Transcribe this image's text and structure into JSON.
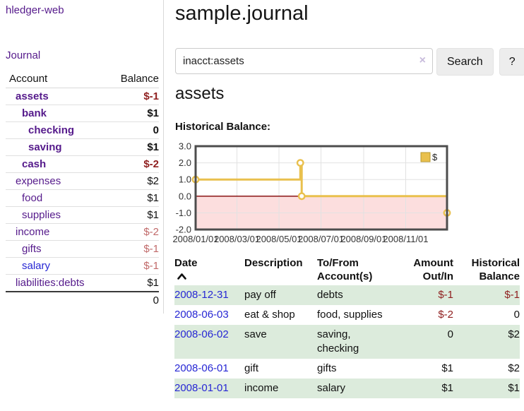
{
  "theme": {
    "purple": "#551a8b",
    "blue": "#2727d4",
    "strongNeg": "#8f1f1f",
    "softNeg": "#c16a6a",
    "stripe": "#dcebdc",
    "gold": "#e9c04d",
    "pink": "#fcdede",
    "zero": "#7f0000",
    "lavender": "#c8bcdc"
  },
  "app": {
    "brand": "hledger-web",
    "nav_journal": "Journal"
  },
  "sidebar": {
    "header": {
      "account": "Account",
      "balance": "Balance"
    },
    "accounts": [
      {
        "name": "assets",
        "balance": "$-1",
        "indent": 0,
        "bold": true,
        "balance_style": "neg-strong",
        "link": "purple"
      },
      {
        "name": "bank",
        "balance": "$1",
        "indent": 1,
        "bold": true,
        "balance_style": "normal",
        "link": "purple"
      },
      {
        "name": "checking",
        "balance": "0",
        "indent": 2,
        "bold": true,
        "balance_style": "normal",
        "link": "purple"
      },
      {
        "name": "saving",
        "balance": "$1",
        "indent": 2,
        "bold": true,
        "balance_style": "normal",
        "link": "purple"
      },
      {
        "name": "cash",
        "balance": "$-2",
        "indent": 1,
        "bold": true,
        "balance_style": "neg-strong",
        "link": "purple"
      },
      {
        "name": "expenses",
        "balance": "$2",
        "indent": 0,
        "bold": false,
        "balance_style": "normal",
        "link": "purple"
      },
      {
        "name": "food",
        "balance": "$1",
        "indent": 1,
        "bold": false,
        "balance_style": "normal",
        "link": "purple"
      },
      {
        "name": "supplies",
        "balance": "$1",
        "indent": 1,
        "bold": false,
        "balance_style": "normal",
        "link": "purple"
      },
      {
        "name": "income",
        "balance": "$-2",
        "indent": 0,
        "bold": false,
        "balance_style": "neg-soft",
        "link": "purple"
      },
      {
        "name": "gifts",
        "balance": "$-1",
        "indent": 1,
        "bold": false,
        "balance_style": "neg-soft",
        "link": "purple"
      },
      {
        "name": "salary",
        "balance": "$-1",
        "indent": 1,
        "bold": false,
        "balance_style": "neg-soft",
        "link": "blue"
      },
      {
        "name": "liabilities:debts",
        "balance": "$1",
        "indent": 0,
        "bold": false,
        "balance_style": "normal",
        "link": "purple"
      }
    ],
    "total": "0"
  },
  "header": {
    "title": "sample.journal"
  },
  "search": {
    "value": "inacct:assets",
    "clear_icon": "×",
    "button_label": "Search",
    "help_label": "?"
  },
  "account_page": {
    "title": "assets",
    "chart_label": "Historical Balance:"
  },
  "chart_data": {
    "type": "line",
    "step": true,
    "title": "Historical Balance",
    "legend": [
      {
        "label": "$",
        "color": "#e9c04d"
      }
    ],
    "x_ticks": [
      {
        "day": 0,
        "label": "2008/01/01"
      },
      {
        "day": 60,
        "label": "2008/03/01"
      },
      {
        "day": 121,
        "label": "2008/05/01"
      },
      {
        "day": 182,
        "label": "2008/07/01"
      },
      {
        "day": 244,
        "label": "2008/09/01"
      },
      {
        "day": 305,
        "label": "2008/11/01"
      }
    ],
    "y_ticks": [
      "3.0",
      "2.0",
      "1.0",
      "0.0",
      "-1.0",
      "-2.0"
    ],
    "ylim": [
      -2,
      3
    ],
    "xlim_days": [
      0,
      365
    ],
    "series": [
      {
        "name": "$",
        "points": [
          {
            "date": "2008/01/01",
            "day": 0,
            "value": 1
          },
          {
            "date": "2008/06/01",
            "day": 152,
            "value": 2
          },
          {
            "date": "2008/06/03",
            "day": 154,
            "value": 0
          },
          {
            "date": "2008/12/31",
            "day": 365,
            "value": -1
          }
        ]
      }
    ],
    "negative_region_fill": "#fcdede",
    "zero_line_color": "#7f0000",
    "line_color": "#e9c04d",
    "grid": true,
    "legend_position": "top-right"
  },
  "register": {
    "headers": {
      "date": "Date",
      "description": "Description",
      "tofrom_line1": "To/From",
      "tofrom_line2": "Account(s)",
      "amount_line1": "Amount",
      "amount_line2": "Out/In",
      "hist_line1": "Historical",
      "hist_line2": "Balance"
    },
    "rows": [
      {
        "date": "2008-12-31",
        "description": "pay off",
        "accounts": "debts",
        "amount": "$-1",
        "balance": "$-1",
        "amount_negative": true,
        "balance_negative": true
      },
      {
        "date": "2008-06-03",
        "description": "eat & shop",
        "accounts": "food, supplies",
        "amount": "$-2",
        "balance": "0",
        "amount_negative": true,
        "balance_negative": false
      },
      {
        "date": "2008-06-02",
        "description": "save",
        "accounts": "saving, checking",
        "amount": "0",
        "balance": "$2",
        "amount_negative": false,
        "balance_negative": false
      },
      {
        "date": "2008-06-01",
        "description": "gift",
        "accounts": "gifts",
        "amount": "$1",
        "balance": "$2",
        "amount_negative": false,
        "balance_negative": false
      },
      {
        "date": "2008-01-01",
        "description": "income",
        "accounts": "salary",
        "amount": "$1",
        "balance": "$1",
        "amount_negative": false,
        "balance_negative": false
      }
    ]
  }
}
